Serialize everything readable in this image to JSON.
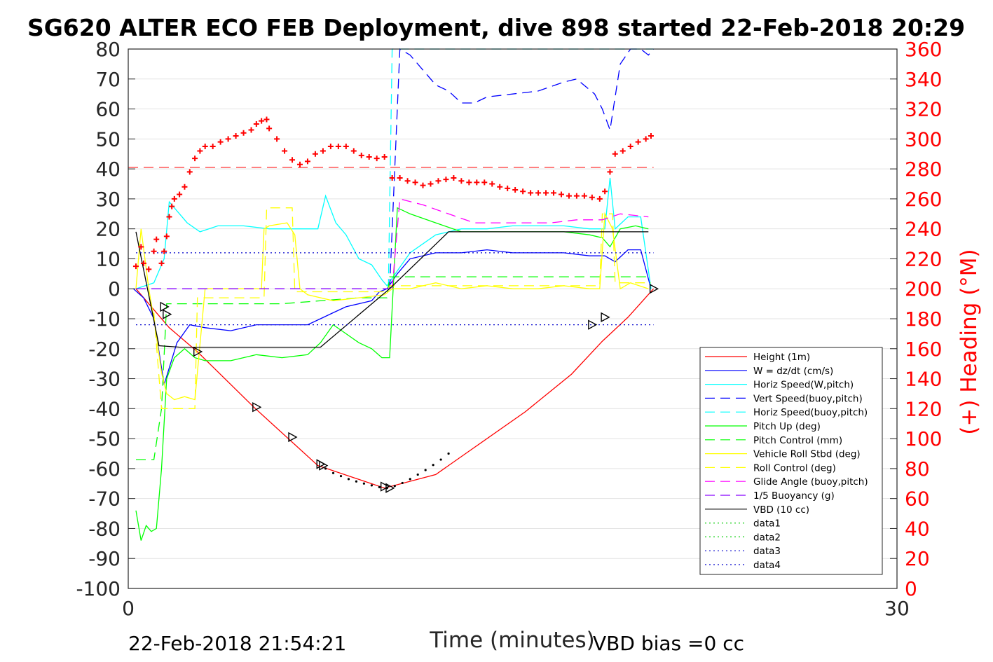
{
  "chart_data": {
    "type": "line",
    "title": "SG620 ALTER ECO FEB Deployment, dive 898 started 22-Feb-2018 20:29",
    "xlabel": "Time (minutes)",
    "ylabel": "",
    "ylabel_right": "(+) Heading (°M)",
    "xlim": [
      0,
      30
    ],
    "ylim": [
      -100,
      80
    ],
    "ylim_right": [
      0,
      360
    ],
    "xticks": [
      "0",
      "30"
    ],
    "yticks": [
      "80",
      "70",
      "60",
      "50",
      "40",
      "30",
      "20",
      "10",
      "0",
      "-10",
      "-20",
      "-30",
      "-40",
      "-50",
      "-60",
      "-70",
      "-80",
      "-90",
      "-100"
    ],
    "yticks_right": [
      "360",
      "340",
      "320",
      "300",
      "280",
      "260",
      "240",
      "220",
      "200",
      "180",
      "160",
      "140",
      "120",
      "100",
      "80",
      "60",
      "40",
      "20",
      "0"
    ],
    "grid": "horizontal",
    "legend_position": "bottom-right",
    "footer_left": "22-Feb-2018 21:54:21",
    "footer_right": "VBD bias =0 cc",
    "series": [
      {
        "name": "Height (1m)",
        "color": "#ff0000",
        "dash": "solid",
        "x": [
          0.3,
          1.0,
          1.6,
          2.7,
          4.9,
          7.4,
          10.0,
          12.0,
          13.5,
          15.5,
          17.3,
          18.5,
          19.5,
          20.5
        ],
        "y": [
          0,
          -7,
          -13,
          -21,
          -39.5,
          -59,
          -66.5,
          -62,
          -53,
          -41,
          -28.5,
          -17.5,
          -9.5,
          0
        ]
      },
      {
        "name": "W = dz/dt (cm/s)",
        "color": "#0000ff",
        "dash": "solid",
        "x": [
          0.2,
          0.6,
          1.0,
          1.4,
          1.9,
          2.4,
          3.0,
          4.0,
          5.0,
          6.0,
          7.0,
          7.5,
          8.0,
          8.5,
          9.0,
          9.5,
          9.8,
          10.1,
          10.5,
          11.0,
          12.0,
          13.0,
          14.0,
          15.0,
          16.0,
          17.0,
          18.0,
          18.6,
          19.0,
          19.5,
          20.0,
          20.4
        ],
        "y": [
          0,
          -3,
          -10,
          -32,
          -18,
          -12,
          -13,
          -14,
          -12,
          -12,
          -12,
          -10,
          -8,
          -6,
          -5,
          -4,
          -1,
          0,
          5,
          10,
          12,
          12,
          13,
          12,
          12,
          12,
          11,
          11,
          9,
          13,
          13,
          0
        ]
      },
      {
        "name": "Horiz Speed(W,pitch)",
        "color": "#00ffff",
        "dash": "solid",
        "x": [
          0.3,
          1.0,
          1.4,
          1.6,
          1.8,
          2.3,
          2.8,
          3.5,
          4.5,
          5.5,
          6.5,
          7.4,
          7.7,
          8.1,
          8.5,
          9.0,
          9.5,
          9.9,
          10.1,
          10.5,
          11.0,
          12.0,
          13.0,
          14.0,
          15.0,
          16.0,
          17.0,
          18.0,
          18.6,
          18.8,
          19.0,
          19.5,
          20.0,
          20.4
        ],
        "y": [
          0,
          2,
          10,
          29,
          27,
          22,
          19,
          21,
          21,
          20,
          20,
          20,
          31,
          22,
          18,
          10,
          8,
          3,
          1,
          6,
          12,
          18,
          20,
          20,
          21,
          21,
          21,
          20,
          20,
          37,
          20,
          24,
          24,
          0
        ]
      },
      {
        "name": "Vert Speed(buoy,pitch)",
        "color": "#0000ff",
        "dash": "dashed",
        "x": [
          10.2,
          10.4,
          10.6,
          11.0,
          11.5,
          12.0,
          12.5,
          13.0,
          13.5,
          14.0,
          15.0,
          16.0,
          17.0,
          17.5,
          18.2,
          18.5,
          18.8,
          19.2,
          19.6,
          20.0,
          20.3,
          20.5
        ],
        "y": [
          0,
          40,
          80,
          78,
          73,
          68,
          66,
          62,
          62,
          64,
          65,
          66,
          69,
          70,
          65,
          60,
          53,
          75,
          80,
          80,
          78,
          80
        ]
      },
      {
        "name": "Horiz Speed(buoy,pitch)",
        "color": "#00ffff",
        "dash": "dashed",
        "x": [
          10.15,
          10.3,
          10.45,
          20.35,
          20.5
        ],
        "y": [
          0,
          80,
          80,
          80,
          80
        ]
      },
      {
        "name": "Pitch Up (deg)",
        "color": "#00ff00",
        "dash": "solid",
        "x": [
          0.3,
          0.5,
          0.7,
          0.9,
          1.1,
          1.3,
          1.5,
          1.8,
          2.2,
          2.6,
          3.0,
          4.0,
          5.0,
          6.0,
          7.0,
          7.5,
          8.0,
          8.5,
          9.0,
          9.5,
          9.9,
          10.2,
          10.5,
          11.0,
          12.0,
          13.0,
          14.0,
          15.0,
          16.0,
          17.0,
          18.0,
          18.5,
          18.8,
          19.2,
          19.8,
          20.3
        ],
        "y": [
          -74,
          -84,
          -79,
          -81,
          -80,
          -60,
          -30,
          -23,
          -20,
          -23,
          -24,
          -24,
          -22,
          -23,
          -22,
          -18,
          -12,
          -15,
          -18,
          -20,
          -23,
          -23,
          27,
          25,
          22,
          19,
          19,
          19,
          19,
          19,
          18,
          17,
          14,
          20,
          21,
          20
        ]
      },
      {
        "name": "Pitch Control (mm)",
        "color": "#00ff00",
        "dash": "dashed",
        "x": [
          0.3,
          1.0,
          1.3,
          1.5,
          3.0,
          6.0,
          9.0,
          10.1,
          10.2,
          12.0,
          15.0,
          18.0,
          20.3
        ],
        "y": [
          -57,
          -57,
          -40,
          -5,
          -5,
          -5,
          -3,
          -3,
          4,
          4,
          4,
          4,
          4
        ]
      },
      {
        "name": "Vehicle Roll Stbd (deg)",
        "color": "#ffff00",
        "dash": "solid",
        "x": [
          0.3,
          0.5,
          0.8,
          1.0,
          1.3,
          1.5,
          1.8,
          2.2,
          2.6,
          3.0,
          4.0,
          5.0,
          5.2,
          5.3,
          5.5,
          6.2,
          6.5,
          6.7,
          7.0,
          8.0,
          9.0,
          10.0,
          10.3,
          11.0,
          12.0,
          13.0,
          14.0,
          15.0,
          16.0,
          17.0,
          18.0,
          18.4,
          18.6,
          18.9,
          19.2,
          19.6,
          20.3
        ],
        "y": [
          0,
          20,
          0,
          -10,
          -28,
          -35,
          -37,
          -36,
          -37,
          0,
          0,
          0,
          0,
          20,
          21,
          22,
          18,
          0,
          -2,
          -4,
          -3,
          -2,
          0,
          0,
          2,
          0,
          1,
          0,
          0,
          1,
          0,
          0,
          25,
          20,
          0,
          2,
          0
        ]
      },
      {
        "name": "Roll Control (deg)",
        "color": "#ffff00",
        "dash": "dashed",
        "x": [
          1.0,
          1.3,
          1.8,
          2.6,
          2.7,
          5.3,
          5.4,
          6.4,
          6.5,
          7.4,
          10.1,
          10.2,
          18.4,
          18.5,
          18.9,
          19.0,
          20.4
        ],
        "y": [
          -8,
          -40,
          -40,
          -40,
          -3,
          -3,
          27,
          27,
          -1,
          -1,
          -1,
          1,
          1,
          25,
          25,
          2,
          2
        ]
      },
      {
        "name": "Glide Angle (buoy,pitch)",
        "color": "#ff00ff",
        "dash": "dashed",
        "x": [
          10.3,
          10.6,
          11.5,
          12.5,
          13.5,
          14.5,
          15.5,
          16.5,
          17.5,
          18.5,
          19.2,
          20.3
        ],
        "y": [
          0,
          30,
          28,
          25,
          22,
          22,
          22,
          22,
          23,
          23,
          25,
          24
        ]
      },
      {
        "name": "1/5 Buoyancy (g)",
        "color": "#8800ff",
        "dash": "dashed",
        "x": [
          0.3,
          10.2
        ],
        "y": [
          0,
          0
        ]
      },
      {
        "name": "VBD (10 cc)",
        "color": "#000000",
        "dash": "solid",
        "x": [
          0.3,
          1.2,
          2.0,
          4.0,
          6.0,
          7.5,
          10.2,
          12.5,
          15.0,
          18.0,
          20.3
        ],
        "y": [
          19,
          -19,
          -19.5,
          -19.5,
          -19.5,
          -19.5,
          0,
          19,
          19,
          19,
          19
        ]
      },
      {
        "name": "data1",
        "color": "#00cc00",
        "dash": "dotted",
        "x": [],
        "y": []
      },
      {
        "name": "data2",
        "color": "#00cc00",
        "dash": "dotted",
        "x": [],
        "y": []
      },
      {
        "name": "data3",
        "color": "#0000cc",
        "dash": "dotted",
        "x": [
          0.3,
          20.5
        ],
        "y": [
          12,
          12
        ]
      },
      {
        "name": "data4",
        "color": "#0000cc",
        "dash": "dotted",
        "x": [
          0.3,
          20.5
        ],
        "y": [
          -12,
          -12
        ]
      }
    ],
    "heading": {
      "color": "#ff0000",
      "mean_line": 281,
      "x": [
        0.3,
        0.5,
        0.6,
        0.8,
        1.0,
        1.1,
        1.3,
        1.4,
        1.5,
        1.6,
        1.7,
        1.8,
        2.0,
        2.2,
        2.4,
        2.6,
        2.8,
        3.0,
        3.3,
        3.6,
        3.9,
        4.2,
        4.5,
        4.8,
        5.0,
        5.2,
        5.4,
        5.5,
        5.8,
        6.1,
        6.4,
        6.7,
        7.0,
        7.3,
        7.6,
        7.9,
        8.2,
        8.5,
        8.8,
        9.1,
        9.4,
        9.7,
        10.0,
        10.3,
        10.6,
        10.9,
        11.2,
        11.5,
        11.8,
        12.1,
        12.4,
        12.7,
        13.0,
        13.3,
        13.6,
        13.9,
        14.2,
        14.5,
        14.8,
        15.1,
        15.4,
        15.7,
        16.0,
        16.3,
        16.6,
        16.9,
        17.2,
        17.5,
        17.8,
        18.1,
        18.4,
        18.6,
        18.8,
        19.0,
        19.3,
        19.6,
        19.9,
        20.2,
        20.4
      ],
      "y": [
        215,
        228,
        217,
        213,
        225,
        233,
        217,
        225,
        235,
        248,
        255,
        260,
        263,
        268,
        278,
        287,
        292,
        295,
        295,
        298,
        300,
        302,
        304,
        306,
        310,
        312,
        313,
        307,
        300,
        292,
        286,
        283,
        285,
        290,
        292,
        295,
        295,
        295,
        292,
        289,
        288,
        287,
        288,
        274,
        274,
        272,
        271,
        269,
        270,
        272,
        273,
        274,
        272,
        271,
        271,
        271,
        270,
        268,
        267,
        266,
        265,
        264,
        264,
        264,
        264,
        263,
        262,
        262,
        262,
        261,
        260,
        265,
        278,
        290,
        292,
        295,
        298,
        300,
        302
      ]
    },
    "markers": {
      "label": "Height (1m)",
      "x": [
        1.4,
        1.5,
        2.7,
        5.0,
        6.4,
        7.5,
        7.6,
        10.0,
        10.2,
        18.1,
        18.6,
        20.5
      ],
      "y": [
        -6,
        -8.5,
        -21,
        -39.5,
        -49.5,
        -58.5,
        -59,
        -66,
        -66.5,
        -12,
        -9.5,
        0
      ]
    },
    "black_dots": {
      "x": [
        7.7,
        8.0,
        8.3,
        8.6,
        8.9,
        9.2,
        9.5,
        9.8,
        10.1,
        10.4,
        10.7,
        11.0,
        11.3,
        11.6,
        11.9,
        12.2,
        12.5
      ],
      "y": [
        -60,
        -61.5,
        -62.5,
        -63.5,
        -64.3,
        -65,
        -65.6,
        -66.2,
        -66.5,
        -65.8,
        -64.8,
        -63.5,
        -62,
        -60.5,
        -58.8,
        -57,
        -55
      ]
    }
  }
}
